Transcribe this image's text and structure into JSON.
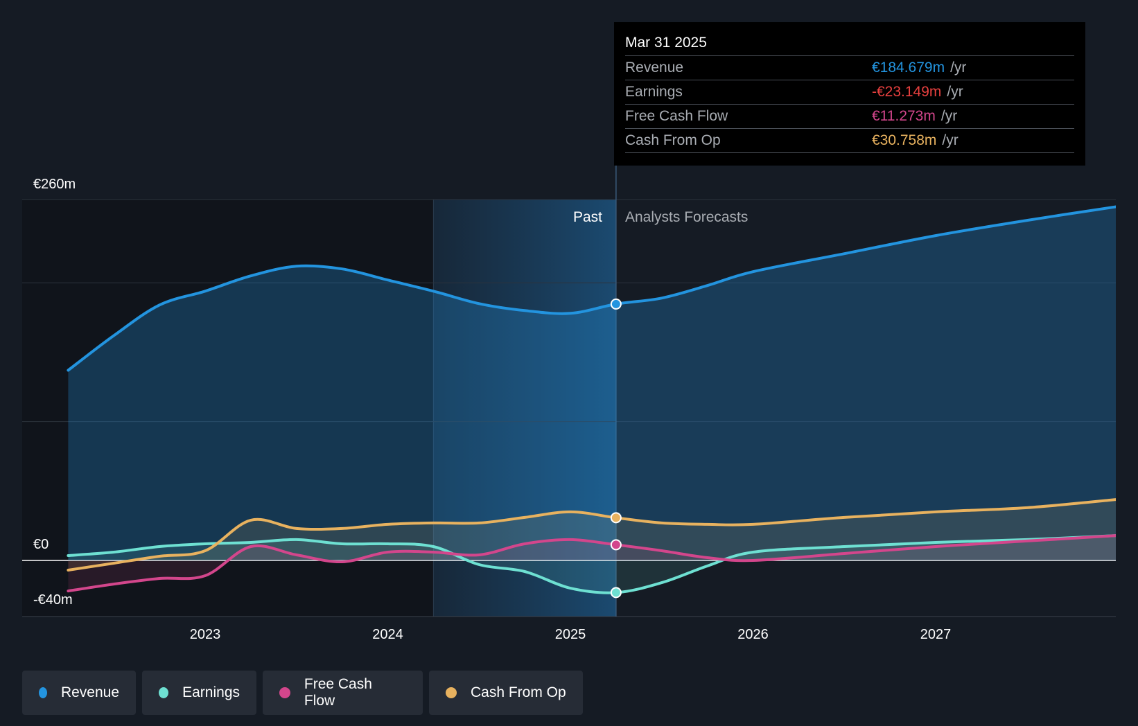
{
  "chart_data": {
    "type": "line",
    "y_unit": "€m",
    "ylim": [
      -40,
      260
    ],
    "y_axis_labels": [
      "€260m",
      "€0",
      "-€40m"
    ],
    "x_tick_labels": [
      "2023",
      "2024",
      "2025",
      "2026",
      "2027"
    ],
    "x_ticks": [
      2023,
      2024,
      2025,
      2026,
      2027
    ],
    "xlim": [
      2022.0,
      2028.0
    ],
    "forecast_start": 2025.25,
    "past_band_start": 2024.25,
    "region_labels": {
      "past": "Past",
      "forecast": "Analysts Forecasts"
    },
    "series": [
      {
        "name": "Revenue",
        "color": "#2394df",
        "x": [
          2022.25,
          2022.5,
          2022.75,
          2023.0,
          2023.25,
          2023.5,
          2023.75,
          2024.0,
          2024.25,
          2024.5,
          2024.75,
          2025.0,
          2025.25,
          2025.5,
          2025.75,
          2026.0,
          2026.5,
          2027.0,
          2027.5,
          2028.0
        ],
        "values": [
          137,
          162,
          184,
          194,
          205,
          212,
          210,
          202,
          194,
          185,
          180,
          178,
          184.679,
          189,
          198,
          208,
          221,
          234,
          245,
          255
        ]
      },
      {
        "name": "Earnings",
        "color": "#6ee0d2",
        "x": [
          2022.25,
          2022.5,
          2022.75,
          2023.0,
          2023.25,
          2023.5,
          2023.75,
          2024.0,
          2024.25,
          2024.5,
          2024.75,
          2025.0,
          2025.25,
          2025.5,
          2025.75,
          2026.0,
          2026.5,
          2027.0,
          2027.5,
          2028.0
        ],
        "values": [
          3.5,
          6,
          10,
          12,
          13,
          15,
          12,
          12,
          10,
          -3,
          -8,
          -20,
          -23.149,
          -16,
          -4,
          6,
          10,
          13,
          15,
          18
        ]
      },
      {
        "name": "Free Cash Flow",
        "color": "#d3468c",
        "x": [
          2022.25,
          2022.5,
          2022.75,
          2023.0,
          2023.25,
          2023.5,
          2023.75,
          2024.0,
          2024.25,
          2024.5,
          2024.75,
          2025.0,
          2025.25,
          2025.5,
          2025.75,
          2026.0,
          2026.5,
          2027.0,
          2027.5,
          2028.0
        ],
        "values": [
          -22,
          -17,
          -13,
          -11,
          10,
          4,
          -1,
          6,
          6,
          4,
          12,
          15,
          11.273,
          7,
          2,
          0,
          5,
          10,
          14,
          18
        ]
      },
      {
        "name": "Cash From Op",
        "color": "#e8b25f",
        "x": [
          2022.25,
          2022.5,
          2022.75,
          2023.0,
          2023.25,
          2023.5,
          2023.75,
          2024.0,
          2024.25,
          2024.5,
          2024.75,
          2025.0,
          2025.25,
          2025.5,
          2025.75,
          2026.0,
          2026.5,
          2027.0,
          2027.5,
          2028.0
        ],
        "values": [
          -7,
          -2,
          3,
          7,
          29,
          23,
          23,
          26,
          27,
          27,
          31,
          35,
          30.758,
          27,
          26,
          26,
          31,
          35,
          38,
          44
        ]
      }
    ]
  },
  "tooltip": {
    "date": "Mar 31 2025",
    "rows": [
      {
        "label": "Revenue",
        "value": "€184.679m",
        "unit": "/yr",
        "color": "#2394df"
      },
      {
        "label": "Earnings",
        "value": "-€23.149m",
        "unit": "/yr",
        "color": "#e8403f"
      },
      {
        "label": "Free Cash Flow",
        "value": "€11.273m",
        "unit": "/yr",
        "color": "#d3468c"
      },
      {
        "label": "Cash From Op",
        "value": "€30.758m",
        "unit": "/yr",
        "color": "#e8b25f"
      }
    ]
  },
  "legend": [
    {
      "label": "Revenue",
      "color": "#2394df"
    },
    {
      "label": "Earnings",
      "color": "#6ee0d2"
    },
    {
      "label": "Free Cash Flow",
      "color": "#d3468c"
    },
    {
      "label": "Cash From Op",
      "color": "#e8b25f"
    }
  ]
}
